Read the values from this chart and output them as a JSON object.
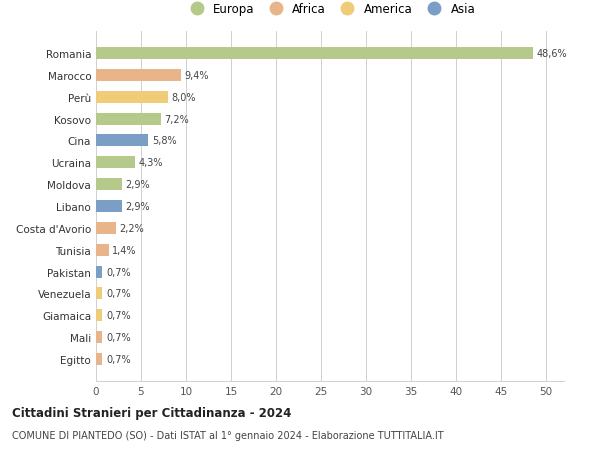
{
  "categories": [
    "Egitto",
    "Mali",
    "Giamaica",
    "Venezuela",
    "Pakistan",
    "Tunisia",
    "Costa d'Avorio",
    "Libano",
    "Moldova",
    "Ucraina",
    "Cina",
    "Kosovo",
    "Perù",
    "Marocco",
    "Romania"
  ],
  "values": [
    0.7,
    0.7,
    0.7,
    0.7,
    0.7,
    1.4,
    2.2,
    2.9,
    2.9,
    4.3,
    5.8,
    7.2,
    8.0,
    9.4,
    48.6
  ],
  "labels": [
    "0,7%",
    "0,7%",
    "0,7%",
    "0,7%",
    "0,7%",
    "1,4%",
    "2,2%",
    "2,9%",
    "2,9%",
    "4,3%",
    "5,8%",
    "7,2%",
    "8,0%",
    "9,4%",
    "48,6%"
  ],
  "continents": [
    "Africa",
    "Africa",
    "America",
    "America",
    "Asia",
    "Africa",
    "Africa",
    "Asia",
    "Europa",
    "Europa",
    "Asia",
    "Europa",
    "America",
    "Africa",
    "Europa"
  ],
  "colors": {
    "Europa": "#b5c98a",
    "Africa": "#e8b48a",
    "America": "#f0cc78",
    "Asia": "#7b9fc4"
  },
  "title1": "Cittadini Stranieri per Cittadinanza - 2024",
  "title2": "COMUNE DI PIANTEDO (SO) - Dati ISTAT al 1° gennaio 2024 - Elaborazione TUTTITALIA.IT",
  "xlim": [
    0,
    52
  ],
  "xticks": [
    0,
    5,
    10,
    15,
    20,
    25,
    30,
    35,
    40,
    45,
    50
  ],
  "background_color": "#ffffff",
  "grid_color": "#d0d0d0",
  "bar_height": 0.55
}
